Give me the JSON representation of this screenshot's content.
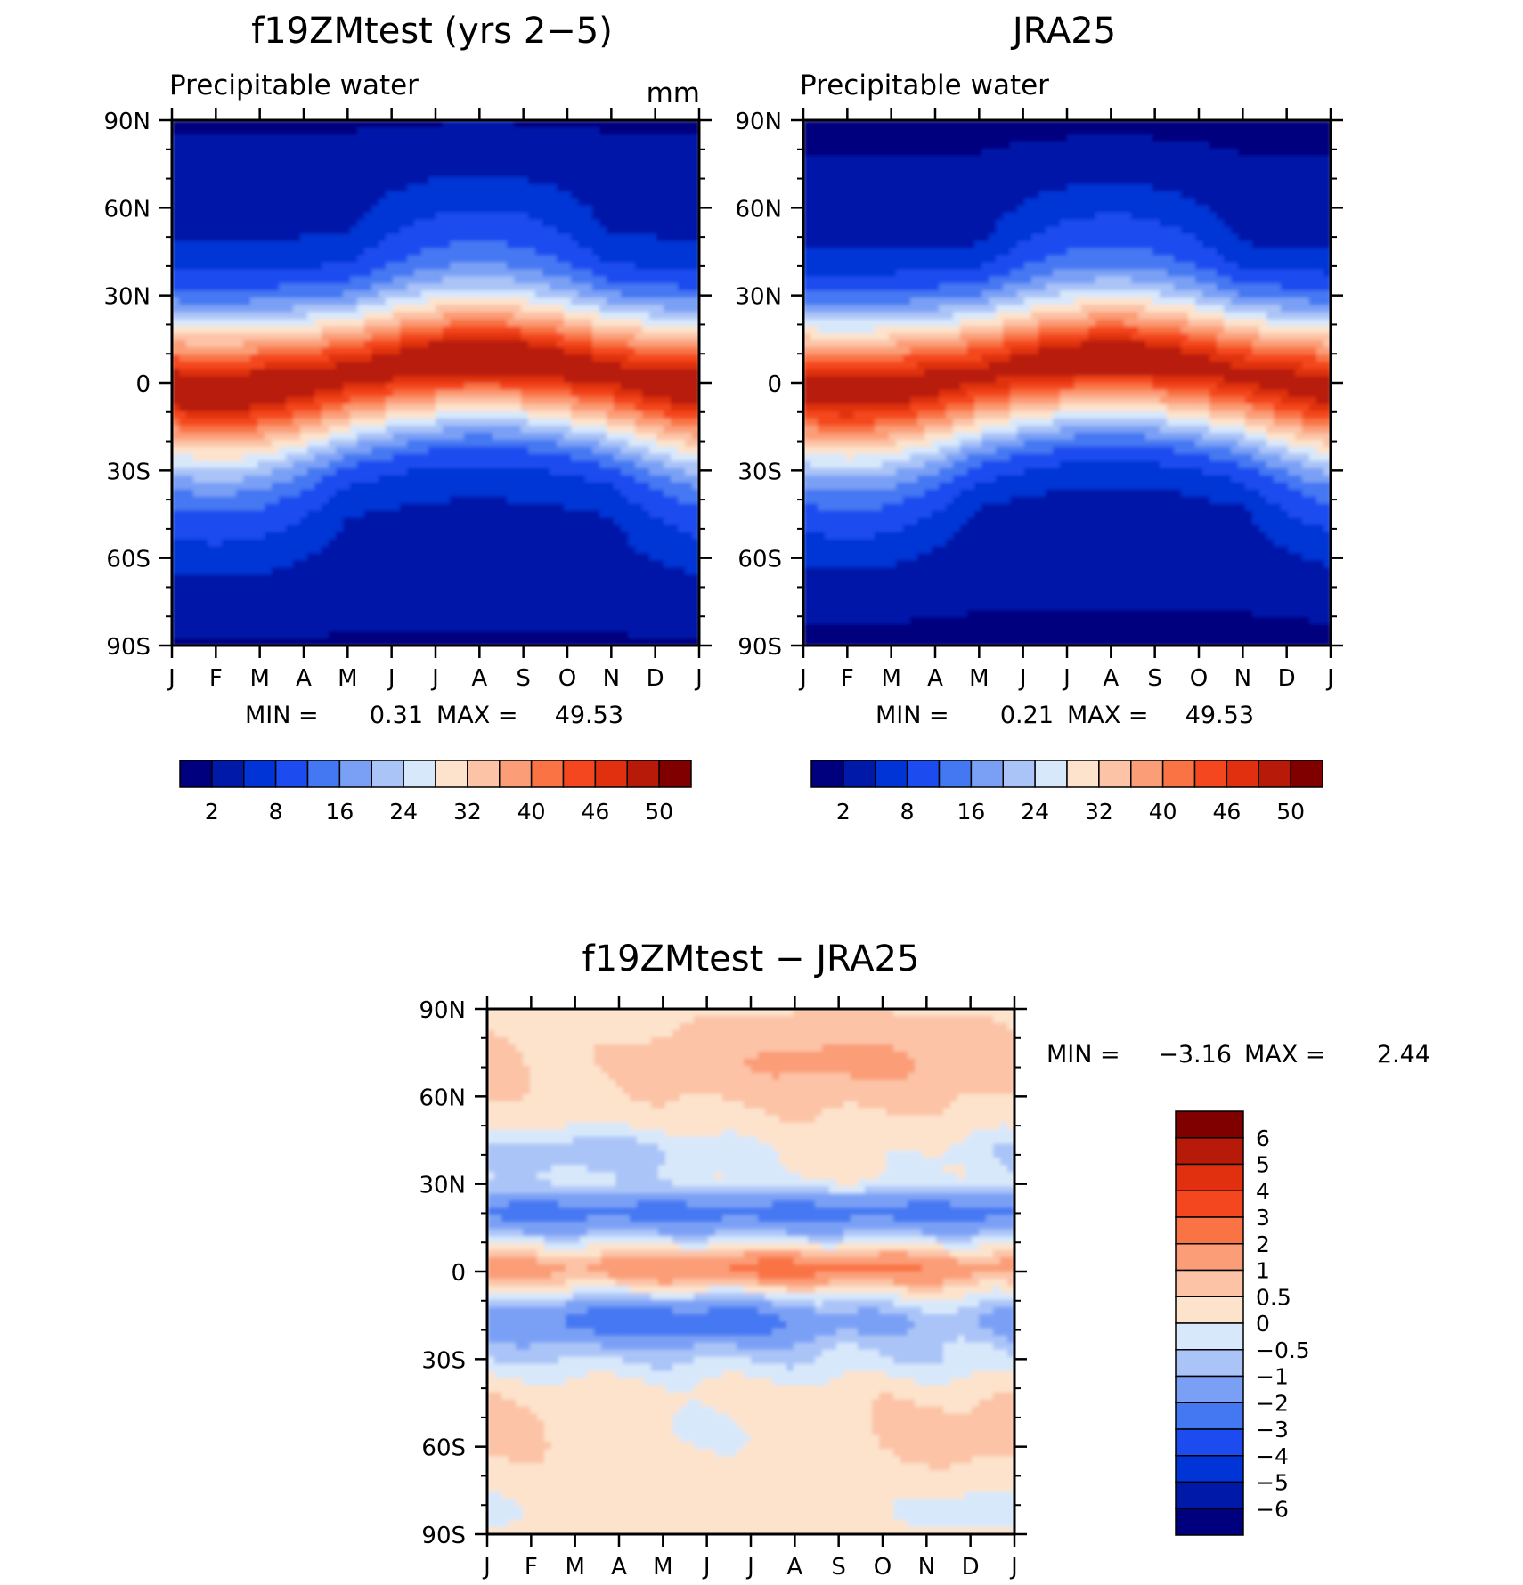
{
  "chart_data": [
    {
      "type": "heatmap",
      "title": "f19ZMtest (yrs 2−5)",
      "subtitle": "Precipitable water",
      "units": "mm",
      "x_tick_labels": [
        "J",
        "F",
        "M",
        "A",
        "M",
        "J",
        "J",
        "A",
        "S",
        "O",
        "N",
        "D",
        "J"
      ],
      "y_tick_labels": [
        "90N",
        "60N",
        "30N",
        "0",
        "30S",
        "60S",
        "90S"
      ],
      "y_values": [
        90,
        60,
        30,
        0,
        -30,
        -60,
        -90
      ],
      "stats": {
        "min_label": "MIN =",
        "min_value": "0.31",
        "max_label": "MAX =",
        "max_value": "49.53"
      },
      "colorbar": {
        "colors": [
          "#00007f",
          "#0019a8",
          "#0034d6",
          "#1c4cf0",
          "#4478f2",
          "#7aa0f5",
          "#aac4f8",
          "#d8e8fb",
          "#fde3cc",
          "#fcc3a6",
          "#fb9d77",
          "#f97344",
          "#f4471f",
          "#e03010",
          "#b81a0a",
          "#800000"
        ],
        "labels": [
          "2",
          "8",
          "16",
          "24",
          "32",
          "40",
          "46",
          "50"
        ]
      },
      "field_summary": {
        "equator_max_month": "A",
        "equator_max_lat": 8,
        "equator_max_mm": 49.53
      }
    },
    {
      "type": "heatmap",
      "title": "JRA25",
      "subtitle": "Precipitable water",
      "x_tick_labels": [
        "J",
        "F",
        "M",
        "A",
        "M",
        "J",
        "J",
        "A",
        "S",
        "O",
        "N",
        "D",
        "J"
      ],
      "y_tick_labels": [
        "90N",
        "60N",
        "30N",
        "0",
        "30S",
        "60S",
        "90S"
      ],
      "y_values": [
        90,
        60,
        30,
        0,
        -30,
        -60,
        -90
      ],
      "stats": {
        "min_label": "MIN =",
        "min_value": "0.21",
        "max_label": "MAX =",
        "max_value": "49.53"
      },
      "colorbar": {
        "colors": [
          "#00007f",
          "#0019a8",
          "#0034d6",
          "#1c4cf0",
          "#4478f2",
          "#7aa0f5",
          "#aac4f8",
          "#d8e8fb",
          "#fde3cc",
          "#fcc3a6",
          "#fb9d77",
          "#f97344",
          "#f4471f",
          "#e03010",
          "#b81a0a",
          "#800000"
        ],
        "labels": [
          "2",
          "8",
          "16",
          "24",
          "32",
          "40",
          "46",
          "50"
        ]
      }
    },
    {
      "type": "heatmap",
      "title": "f19ZMtest − JRA25",
      "x_tick_labels": [
        "J",
        "F",
        "M",
        "A",
        "M",
        "J",
        "J",
        "A",
        "S",
        "O",
        "N",
        "D",
        "J"
      ],
      "y_tick_labels": [
        "90N",
        "60N",
        "30N",
        "0",
        "30S",
        "60S",
        "90S"
      ],
      "y_values": [
        90,
        60,
        30,
        0,
        -30,
        -60,
        -90
      ],
      "stats": {
        "min_label": "MIN =",
        "min_value": "−3.16",
        "max_label": "MAX =",
        "max_value": "2.44"
      },
      "colorbar": {
        "levels": [
          6,
          5,
          4,
          3,
          2,
          1,
          0.5,
          0,
          -0.5,
          -1,
          -2,
          -3,
          -4,
          -5,
          -6
        ],
        "labels": [
          "6",
          "5",
          "4",
          "3",
          "2",
          "1",
          "0.5",
          "0",
          "−0.5",
          "−1",
          "−2",
          "−3",
          "−4",
          "−5",
          "−6"
        ],
        "colors": [
          "#800000",
          "#b81a0a",
          "#e03010",
          "#f4471f",
          "#f97344",
          "#fb9d77",
          "#fcc3a6",
          "#fde3cc",
          "#d8e8fb",
          "#aac4f8",
          "#7aa0f5",
          "#4478f2",
          "#1c4cf0",
          "#0034d6",
          "#0019a8",
          "#00007f"
        ]
      }
    }
  ]
}
